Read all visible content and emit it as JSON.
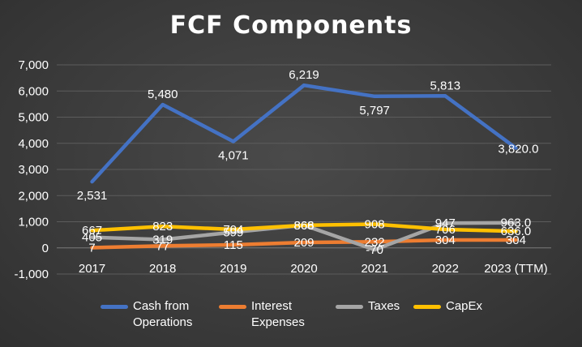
{
  "chart_data": {
    "type": "line",
    "title": "FCF Components",
    "categories": [
      "2017",
      "2018",
      "2019",
      "2020",
      "2021",
      "2022",
      "2023 (TTM)"
    ],
    "ylim": [
      -1000,
      7000
    ],
    "yticks": [
      -1000,
      0,
      1000,
      2000,
      3000,
      4000,
      5000,
      6000,
      7000
    ],
    "ytick_labels": [
      "-1,000",
      "0",
      "1,000",
      "2,000",
      "3,000",
      "4,000",
      "5,000",
      "6,000",
      "7,000"
    ],
    "grid": true,
    "legend_position": "bottom",
    "series": [
      {
        "name": "Cash from Operations",
        "legend_lines": [
          "Cash from",
          "Operations"
        ],
        "color": "#4472c4",
        "values": [
          2531,
          5480,
          4071,
          6219,
          5797,
          5813,
          3820
        ],
        "labels": [
          "2,531",
          "5,480",
          "4,071",
          "6,219",
          "5,797",
          "5,813",
          "3,820.0"
        ]
      },
      {
        "name": "Interest Expenses",
        "legend_lines": [
          "Interest",
          "Expenses"
        ],
        "color": "#ed7d31",
        "values": [
          7,
          77,
          115,
          209,
          232,
          304,
          304
        ],
        "labels": [
          "7",
          "77",
          "115",
          "209",
          "232",
          "304",
          "304"
        ]
      },
      {
        "name": "Taxes",
        "legend_lines": [
          "Taxes"
        ],
        "color": "#a5a5a5",
        "values": [
          405,
          319,
          599,
          868,
          -70,
          947,
          963
        ],
        "labels": [
          "405",
          "319",
          "599",
          "868",
          "-70",
          "947",
          "963.0"
        ]
      },
      {
        "name": "CapEx",
        "legend_lines": [
          "CapEx"
        ],
        "color": "#ffc000",
        "values": [
          667,
          823,
          704,
          866,
          908,
          706,
          636
        ],
        "labels": [
          "667",
          "823",
          "704",
          "866",
          "908",
          "706",
          "636.0"
        ]
      }
    ]
  }
}
